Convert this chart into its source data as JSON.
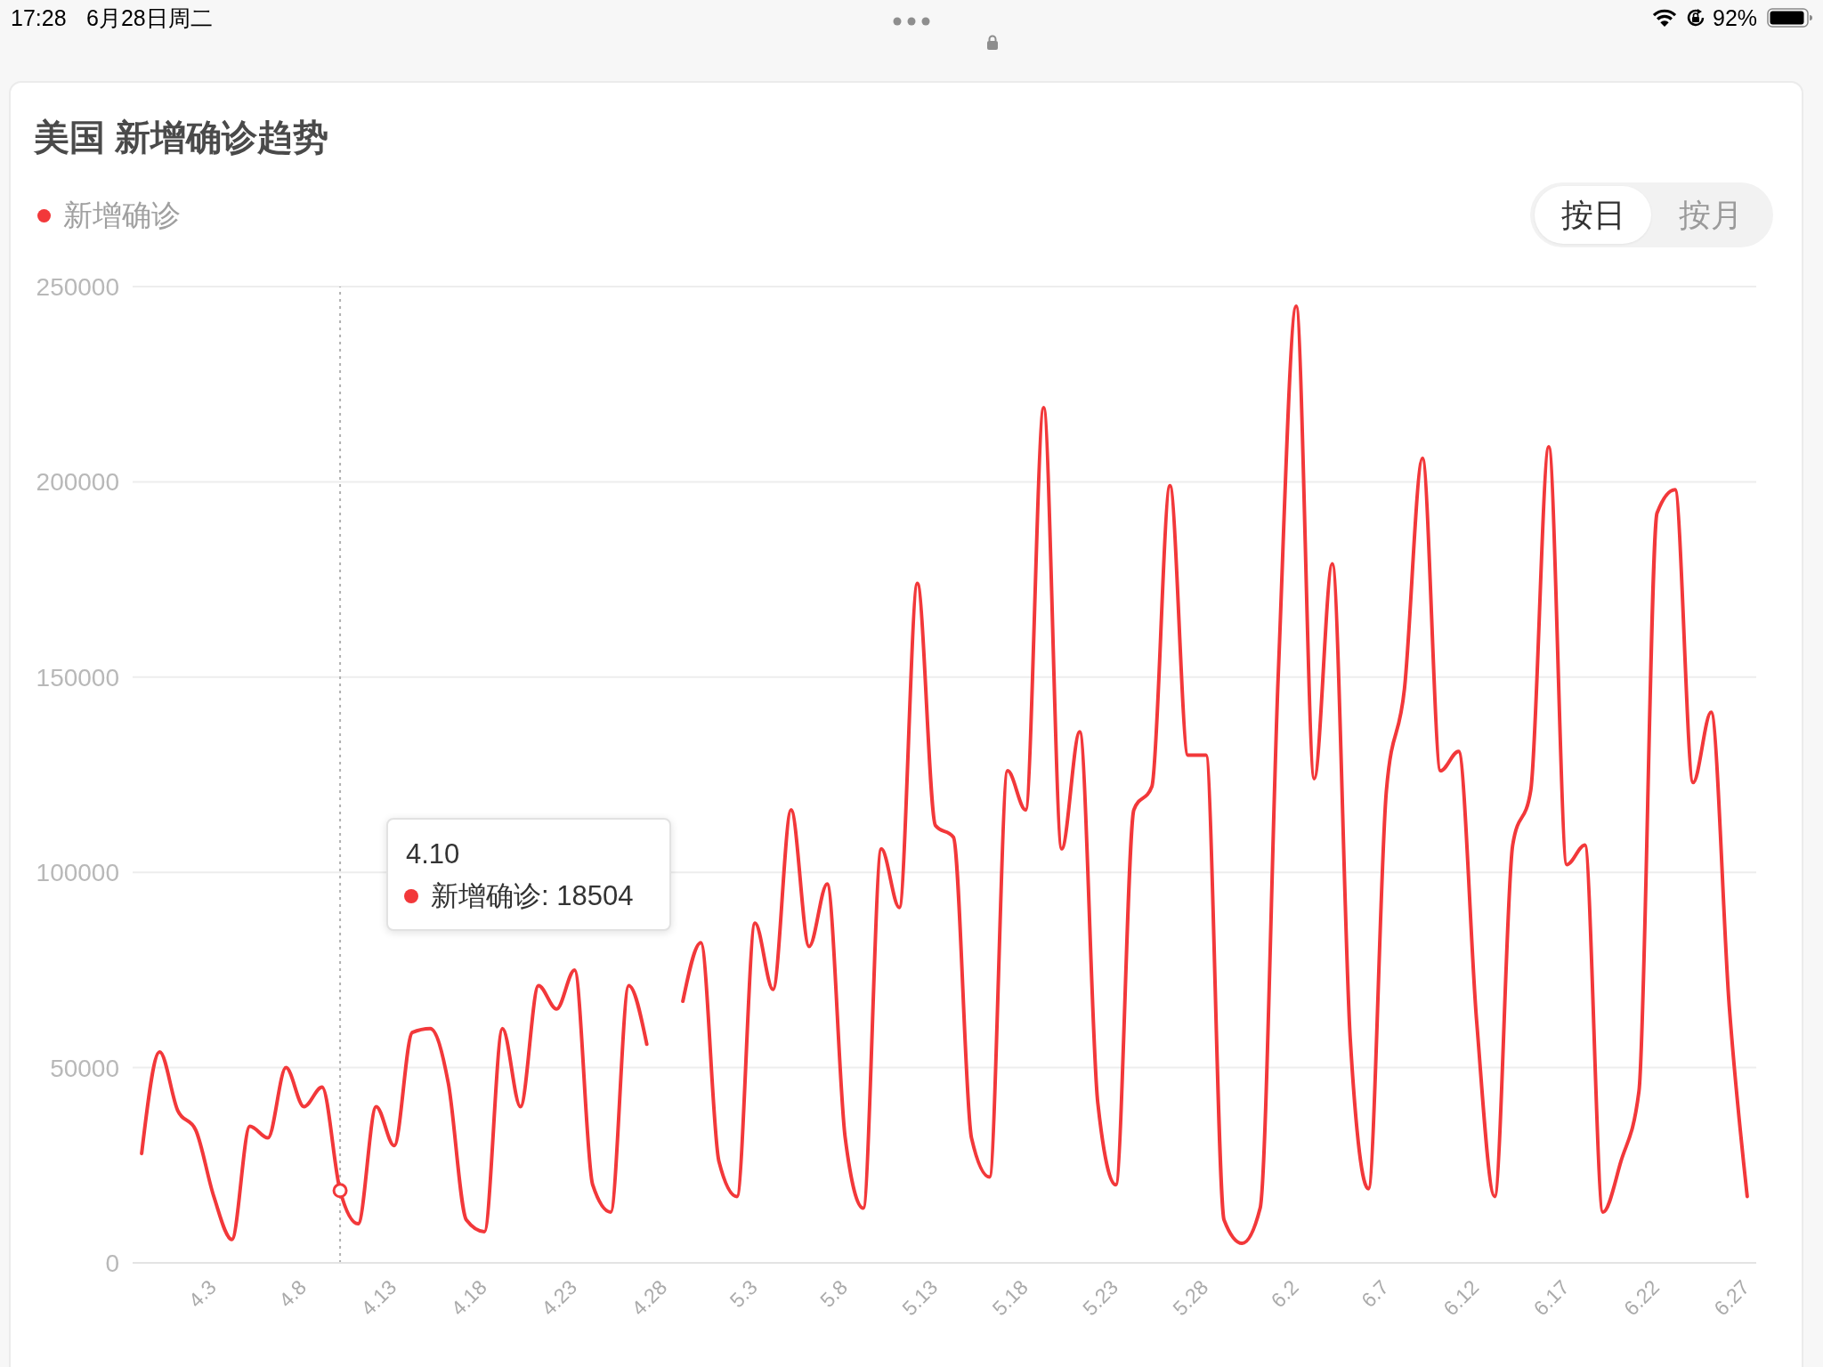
{
  "chart_data": {
    "type": "line",
    "title": "美国 新增确诊趋势",
    "x": [
      "--03-30",
      "--03-31",
      "--04-01",
      "--04-02",
      "--04-03",
      "--04-04",
      "--04-05",
      "--04-06",
      "--04-07",
      "--04-08",
      "--04-09",
      "--04-10",
      "--04-11",
      "--04-12",
      "--04-13",
      "--04-14",
      "--04-15",
      "--04-16",
      "--04-17",
      "--04-18",
      "--04-19",
      "--04-20",
      "--04-21",
      "--04-22",
      "--04-23",
      "--04-24",
      "--04-25",
      "--04-26",
      "--04-27",
      "--04-28",
      "--04-29",
      "--04-30",
      "--05-01",
      "--05-02",
      "--05-03",
      "--05-04",
      "--05-05",
      "--05-06",
      "--05-07",
      "--05-08",
      "--05-09",
      "--05-10",
      "--05-11",
      "--05-12",
      "--05-13",
      "--05-14",
      "--05-15",
      "--05-16",
      "--05-17",
      "--05-18",
      "--05-19",
      "--05-20",
      "--05-21",
      "--05-22",
      "--05-23",
      "--05-24",
      "--05-25",
      "--05-26",
      "--05-27",
      "--05-28",
      "--05-29",
      "--05-30",
      "--05-31",
      "--06-01",
      "--06-02",
      "--06-03",
      "--06-04",
      "--06-05",
      "--06-06",
      "--06-07",
      "--06-08",
      "--06-09",
      "--06-10",
      "--06-11",
      "--06-12",
      "--06-13",
      "--06-14",
      "--06-15",
      "--06-16",
      "--06-17",
      "--06-18",
      "--06-19",
      "--06-20",
      "--06-21",
      "--06-22",
      "--06-23",
      "--06-24",
      "--06-25",
      "--06-26",
      "--06-27"
    ],
    "series": [
      {
        "name": "新增确诊",
        "color": "#f2383a",
        "values": [
          28000,
          54000,
          39000,
          34000,
          17000,
          6000,
          35000,
          32000,
          50000,
          40000,
          45000,
          18504,
          10000,
          40000,
          30000,
          59000,
          60000,
          46000,
          11000,
          8000,
          60000,
          40000,
          71000,
          65000,
          75000,
          20000,
          13000,
          71000,
          56000,
          null,
          67000,
          82000,
          26000,
          17000,
          87000,
          70000,
          116000,
          81000,
          97000,
          32000,
          14000,
          106000,
          91000,
          174000,
          112000,
          109000,
          32000,
          22000,
          126000,
          116000,
          219000,
          106000,
          136000,
          41000,
          20000,
          116000,
          122000,
          199000,
          130000,
          130000,
          11000,
          5000,
          14000,
          150000,
          245000,
          124000,
          179000,
          57000,
          19000,
          121000,
          147000,
          206000,
          126000,
          131000,
          62000,
          17000,
          107000,
          121000,
          209000,
          102000,
          107000,
          13000,
          26000,
          44000,
          192000,
          198000,
          123000,
          141000,
          66000,
          17000
        ]
      }
    ],
    "xlim": [
      "--03-29T12:00",
      "--06-27T12:00"
    ],
    "xticks": [
      {
        "value": "--04-03",
        "label": "4.3"
      },
      {
        "value": "--04-08",
        "label": "4.8"
      },
      {
        "value": "--04-13",
        "label": "4.13"
      },
      {
        "value": "--04-18",
        "label": "4.18"
      },
      {
        "value": "--04-23",
        "label": "4.23"
      },
      {
        "value": "--04-28",
        "label": "4.28"
      },
      {
        "value": "--05-03",
        "label": "5.3"
      },
      {
        "value": "--05-08",
        "label": "5.8"
      },
      {
        "value": "--05-13",
        "label": "5.13"
      },
      {
        "value": "--05-18",
        "label": "5.18"
      },
      {
        "value": "--05-23",
        "label": "5.23"
      },
      {
        "value": "--05-28",
        "label": "5.28"
      },
      {
        "value": "--06-02",
        "label": "6.2"
      },
      {
        "value": "--06-07",
        "label": "6.7"
      },
      {
        "value": "--06-12",
        "label": "6.12"
      },
      {
        "value": "--06-17",
        "label": "6.17"
      },
      {
        "value": "--06-22",
        "label": "6.22"
      },
      {
        "value": "--06-27",
        "label": "6.27"
      }
    ],
    "ylim": [
      0,
      250000
    ],
    "yticks": [
      0,
      50000,
      100000,
      150000,
      200000,
      250000
    ],
    "grid": "y",
    "legend": "top left",
    "marker": "none",
    "ref_lines": [
      {
        "axis": "x",
        "value": "--04-10",
        "color": "#b0b0b0",
        "line_style": "dotted"
      }
    ],
    "annotations": [
      "17:28",
      "6月28日周二",
      "92%",
      "按日",
      "按月",
      "4.10\n新增确诊: 18504"
    ]
  }
}
